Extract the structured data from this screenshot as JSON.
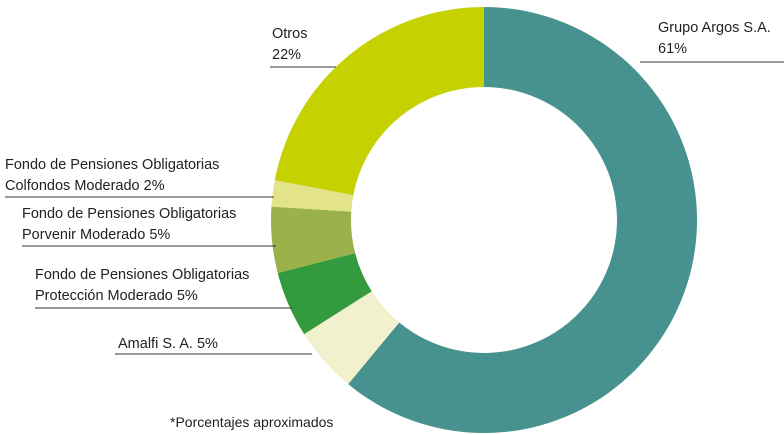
{
  "chart_data": {
    "type": "donut",
    "categories": [
      "Grupo Argos S.A.",
      "Amalfi S. A.",
      "Fondo de Pensiones Obligatorias Protección Moderado",
      "Fondo de Pensiones Obligatorias Porvenir Moderado",
      "Fondo de Pensiones Obligatorias Colfondos Moderado",
      "Otros"
    ],
    "values": [
      61,
      5,
      5,
      5,
      2,
      22
    ],
    "value_labels": [
      "61%",
      "5%",
      "5%",
      "5%",
      "2%",
      "22%"
    ],
    "colors": [
      "#47928e",
      "#f2f1cd",
      "#349a3e",
      "#9bb14b",
      "#e3e38a",
      "#c5d100"
    ],
    "note": "*Porcentajes aproximados"
  }
}
